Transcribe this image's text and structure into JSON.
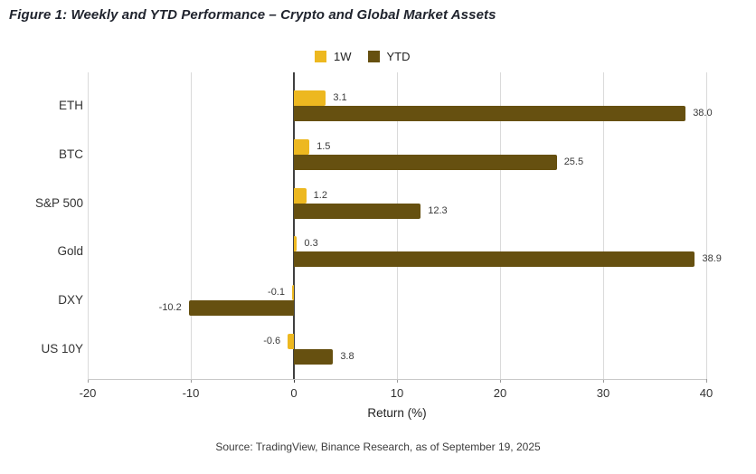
{
  "title": "Figure 1: Weekly and YTD Performance – Crypto and Global Market Assets",
  "source": "Source: TradingView, Binance Research, as of September 19, 2025",
  "colors": {
    "one_week": "#EDB820",
    "ytd": "#665010",
    "gridline": "#dadada",
    "zero_line": "#3f3f3f"
  },
  "chart_data": {
    "type": "bar",
    "orientation": "horizontal",
    "categories": [
      "ETH",
      "BTC",
      "S&P 500",
      "Gold",
      "DXY",
      "US 10Y"
    ],
    "series": [
      {
        "name": "1W",
        "color": "#EDB820",
        "values": [
          3.1,
          1.5,
          1.2,
          0.3,
          -0.1,
          -0.6
        ]
      },
      {
        "name": "YTD",
        "color": "#665010",
        "values": [
          38.0,
          25.5,
          12.3,
          38.9,
          -10.2,
          3.8
        ]
      }
    ],
    "data_labels": [
      [
        "3.1",
        "1.5",
        "1.2",
        "0.3",
        "-0.1",
        "-0.6"
      ],
      [
        "38.0",
        "25.5",
        "12.3",
        "38.9",
        "-10.2",
        "3.8"
      ]
    ],
    "xlabel": "Return (%)",
    "xlim": [
      -20,
      40
    ],
    "xticks": [
      "-20",
      "-10",
      "0",
      "10",
      "20",
      "30",
      "40"
    ],
    "grid": true,
    "legend_position": "top-center"
  }
}
